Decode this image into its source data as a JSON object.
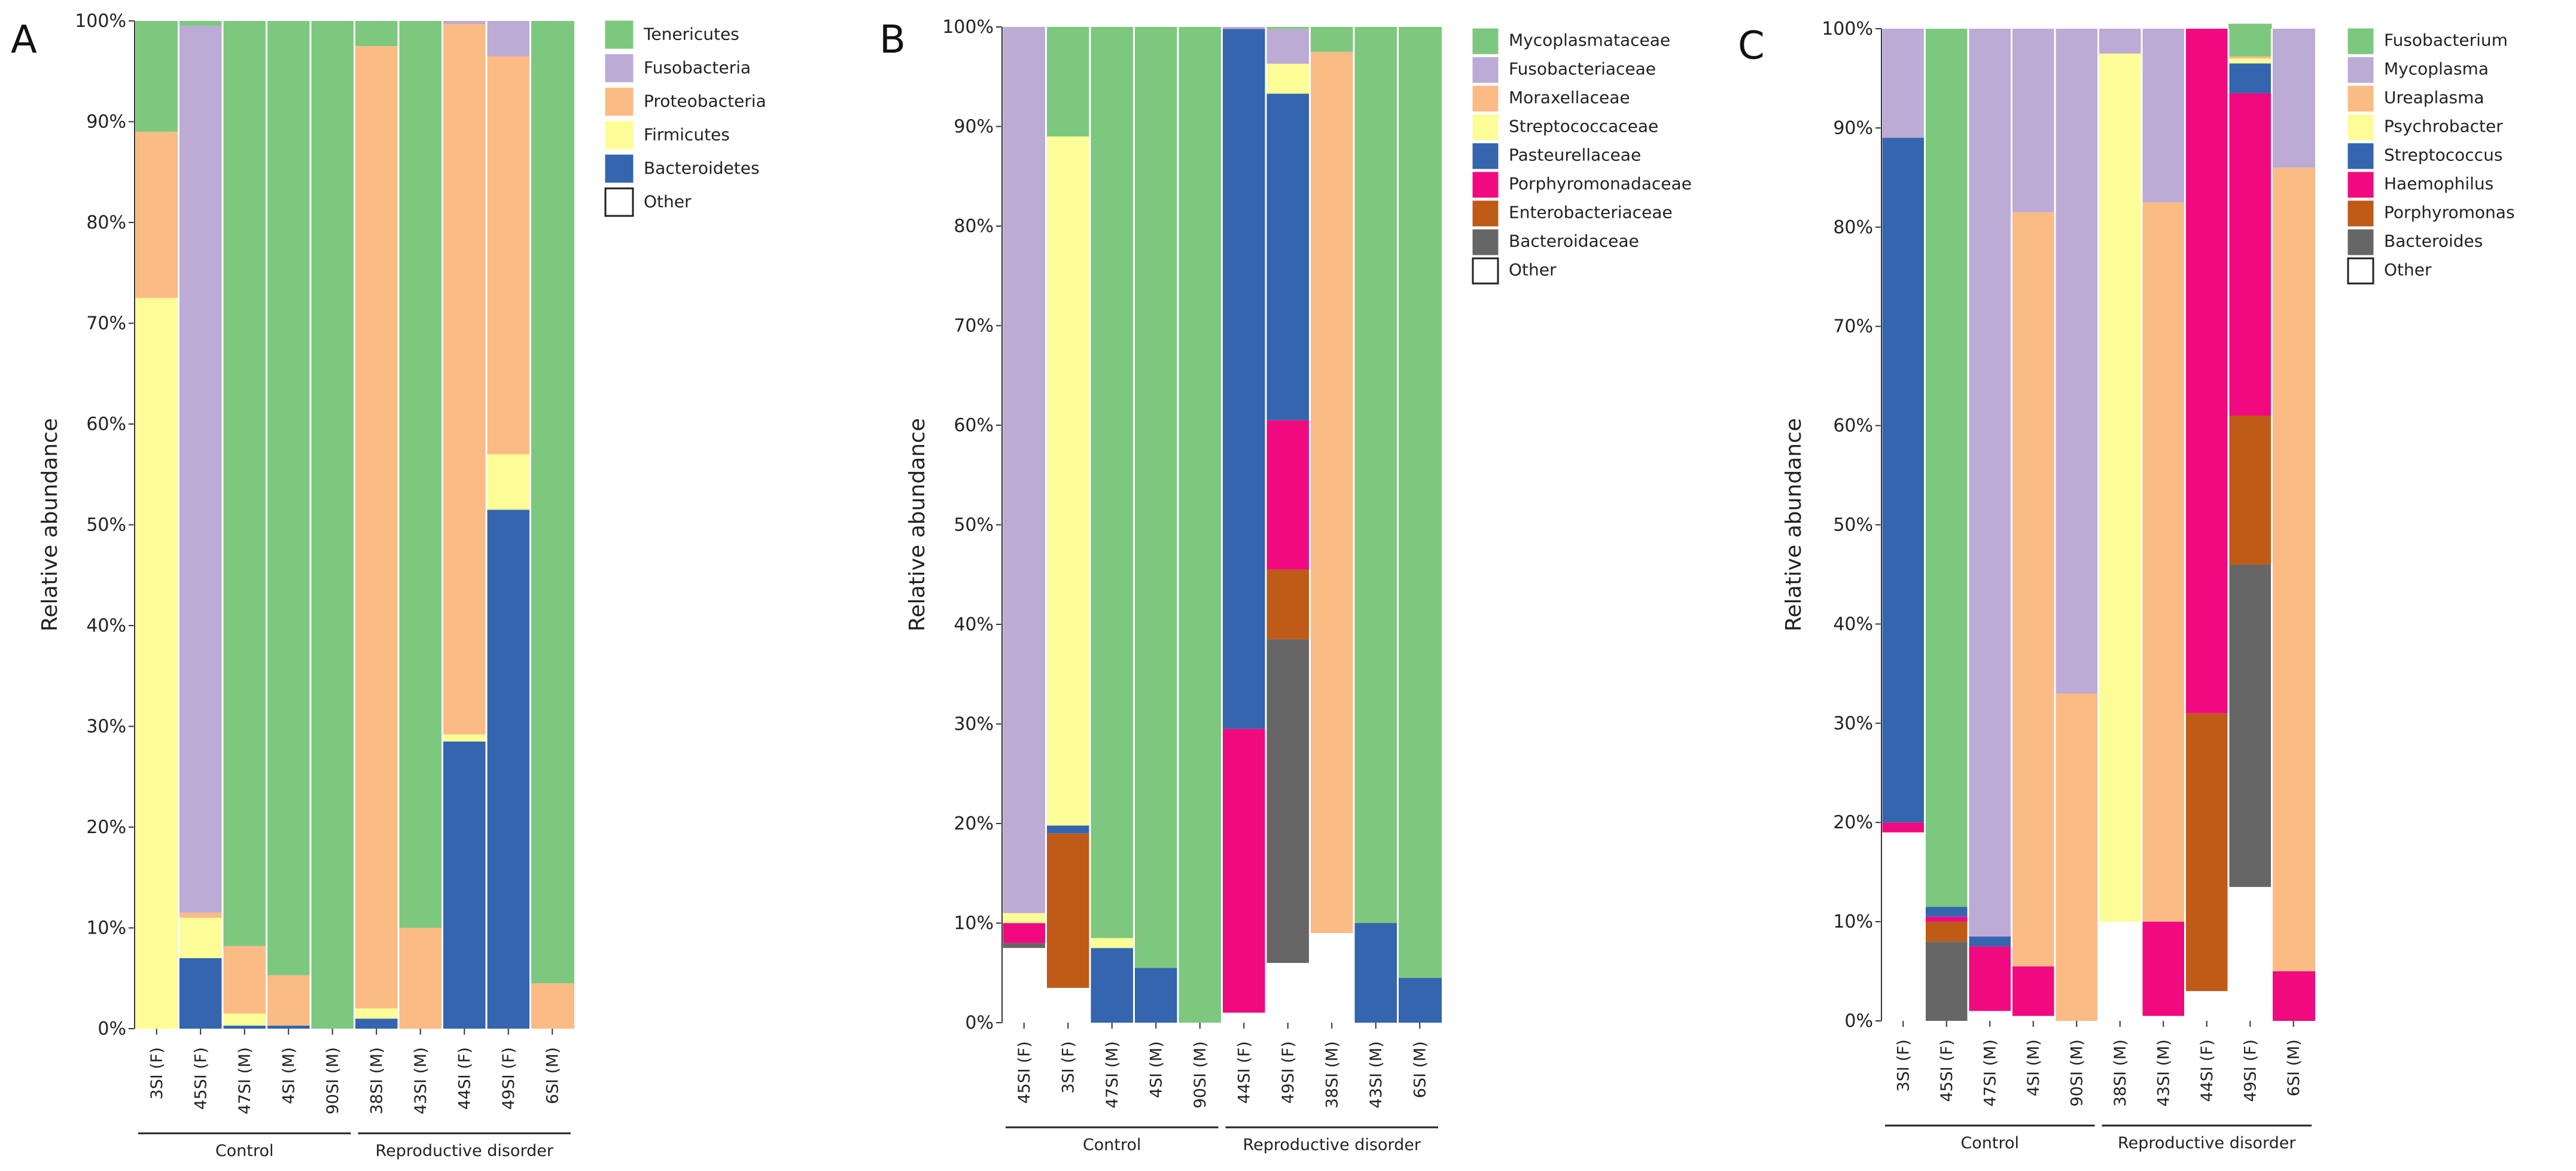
{
  "chart_data": [
    {
      "type": "bar",
      "panel_label": "A",
      "ylabel": "Relative abundance",
      "ylim": [
        0,
        100
      ],
      "yticks": [
        "0%",
        "10%",
        "20%",
        "30%",
        "40%",
        "50%",
        "60%",
        "70%",
        "80%",
        "90%",
        "100%"
      ],
      "categories": [
        "3SI (F)",
        "45SI (F)",
        "47SI (M)",
        "4SI (M)",
        "90SI (M)",
        "38SI (M)",
        "43SI (M)",
        "44SI (F)",
        "49SI (F)",
        "6SI (M)"
      ],
      "groups": [
        {
          "name": "Control",
          "count": 5
        },
        {
          "name": "Reproductive disorder",
          "count": 5
        }
      ],
      "legend": [
        "Tenericutes",
        "Fusobacteria",
        "Proteobacteria",
        "Firmicutes",
        "Bacteroidetes",
        "Other"
      ],
      "stack_order": [
        "Other",
        "Bacteroidetes",
        "Firmicutes",
        "Proteobacteria",
        "Fusobacteria",
        "Tenericutes"
      ],
      "colors": {
        "Tenericutes": "#7dc87f",
        "Fusobacteria": "#bcabd4",
        "Proteobacteria": "#fbbb85",
        "Firmicutes": "#fdfd98",
        "Bacteroidetes": "#3465ae",
        "Other": "#ffffff"
      },
      "series": [
        {
          "name": "Other",
          "values": [
            0,
            0,
            0,
            0,
            0,
            0,
            0,
            0,
            0,
            0
          ]
        },
        {
          "name": "Bacteroidetes",
          "values": [
            0,
            7,
            0.3,
            0.3,
            0,
            1,
            0,
            28.5,
            51.5,
            0
          ]
        },
        {
          "name": "Firmicutes",
          "values": [
            72.5,
            4,
            1.2,
            0,
            0,
            1,
            0,
            0.7,
            5.5,
            0
          ]
        },
        {
          "name": "Proteobacteria",
          "values": [
            16.5,
            0.5,
            6.7,
            5,
            0,
            95.5,
            10,
            70.5,
            39.5,
            4.5
          ]
        },
        {
          "name": "Fusobacteria",
          "values": [
            0,
            88,
            0,
            0,
            0,
            0,
            0,
            0.3,
            3.5,
            0
          ]
        },
        {
          "name": "Tenericutes",
          "values": [
            11,
            0.5,
            91.8,
            94.7,
            100,
            2.5,
            90,
            0,
            0,
            95.5
          ]
        }
      ]
    },
    {
      "type": "bar",
      "panel_label": "B",
      "ylabel": "Relative abundance",
      "ylim": [
        0,
        100
      ],
      "yticks": [
        "0%",
        "10%",
        "20%",
        "30%",
        "40%",
        "50%",
        "60%",
        "70%",
        "80%",
        "90%",
        "100%"
      ],
      "categories": [
        "45SI (F)",
        "3SI (F)",
        "47SI (M)",
        "4SI (M)",
        "90SI (M)",
        "44SI (F)",
        "49SI (F)",
        "38SI (M)",
        "43SI (M)",
        "6SI (M)"
      ],
      "groups": [
        {
          "name": "Control",
          "count": 5
        },
        {
          "name": "Reproductive disorder",
          "count": 5
        }
      ],
      "legend": [
        "Mycoplasmataceae",
        "Fusobacteriaceae",
        "Moraxellaceae",
        "Streptococcaceae",
        "Pasteurellaceae",
        "Porphyromonadaceae",
        "Enterobacteriaceae",
        "Bacteroidaceae",
        "Other"
      ],
      "stack_order": [
        "Other",
        "Bacteroidaceae",
        "Enterobacteriaceae",
        "Porphyromonadaceae",
        "Pasteurellaceae",
        "Streptococcaceae",
        "Moraxellaceae",
        "Fusobacteriaceae",
        "Mycoplasmataceae"
      ],
      "colors": {
        "Mycoplasmataceae": "#7dc87f",
        "Fusobacteriaceae": "#bcabd4",
        "Moraxellaceae": "#fbbb85",
        "Streptococcaceae": "#fdfd98",
        "Pasteurellaceae": "#3465ae",
        "Porphyromonadaceae": "#f0097f",
        "Enterobacteriaceae": "#bf5a17",
        "Bacteroidaceae": "#666666",
        "Other": "#ffffff"
      },
      "series": [
        {
          "name": "Other",
          "values": [
            7.5,
            3.5,
            0,
            0,
            0,
            1,
            6,
            9,
            0,
            0
          ]
        },
        {
          "name": "Bacteroidaceae",
          "values": [
            0.5,
            0,
            0,
            0,
            0,
            0,
            32.5,
            0,
            0,
            0
          ]
        },
        {
          "name": "Enterobacteriaceae",
          "values": [
            0,
            15.5,
            0,
            0,
            0,
            0,
            7,
            0,
            0,
            0
          ]
        },
        {
          "name": "Porphyromonadaceae",
          "values": [
            2,
            0,
            0,
            0,
            0,
            28.5,
            15,
            0,
            0,
            0
          ]
        },
        {
          "name": "Pasteurellaceae",
          "values": [
            0,
            0.8,
            7.5,
            5.5,
            0,
            70.3,
            32.8,
            0,
            10,
            4.5
          ]
        },
        {
          "name": "Streptococcaceae",
          "values": [
            1,
            69.2,
            1,
            0,
            0,
            0,
            3,
            0,
            0,
            0
          ]
        },
        {
          "name": "Moraxellaceae",
          "values": [
            0,
            0,
            0,
            0,
            0,
            0,
            0,
            88.5,
            0,
            0
          ]
        },
        {
          "name": "Fusobacteriaceae",
          "values": [
            89,
            0,
            0,
            0,
            0,
            0.2,
            3.5,
            0,
            0,
            0
          ]
        },
        {
          "name": "Mycoplasmataceae",
          "values": [
            0,
            11,
            91.5,
            94.5,
            100,
            0,
            0.2,
            2.5,
            90,
            95.5
          ]
        }
      ]
    },
    {
      "type": "bar",
      "panel_label": "C",
      "ylabel": "Relative abundance",
      "ylim": [
        0,
        100
      ],
      "yticks": [
        "0%",
        "10%",
        "20%",
        "30%",
        "40%",
        "50%",
        "60%",
        "70%",
        "80%",
        "90%",
        "100%"
      ],
      "categories": [
        "3SI (F)",
        "45SI (F)",
        "47SI (M)",
        "4SI (M)",
        "90SI (M)",
        "38SI (M)",
        "43SI (M)",
        "44SI (F)",
        "49SI (F)",
        "6SI (M)"
      ],
      "groups": [
        {
          "name": "Control",
          "count": 5
        },
        {
          "name": "Reproductive disorder",
          "count": 5
        }
      ],
      "legend": [
        "Fusobacterium",
        "Mycoplasma",
        "Ureaplasma",
        "Psychrobacter",
        "Streptococcus",
        "Haemophilus",
        "Porphyromonas",
        "Bacteroides",
        "Other"
      ],
      "stack_order": [
        "Other",
        "Bacteroides",
        "Porphyromonas",
        "Haemophilus",
        "Streptococcus",
        "Psychrobacter",
        "Ureaplasma",
        "Mycoplasma",
        "Fusobacterium"
      ],
      "colors": {
        "Fusobacterium": "#7dc87f",
        "Mycoplasma": "#bcabd4",
        "Ureaplasma": "#fbbb85",
        "Psychrobacter": "#fdfd98",
        "Streptococcus": "#3465ae",
        "Haemophilus": "#f0097f",
        "Porphyromonas": "#bf5a17",
        "Bacteroides": "#666666",
        "Other": "#ffffff"
      },
      "series": [
        {
          "name": "Other",
          "values": [
            19,
            0,
            1,
            0.5,
            0,
            10,
            0.5,
            3,
            13.5,
            0
          ]
        },
        {
          "name": "Bacteroides",
          "values": [
            0,
            8,
            0,
            0,
            0,
            0,
            0,
            0,
            32.5,
            0
          ]
        },
        {
          "name": "Porphyromonas",
          "values": [
            0,
            2,
            0,
            0,
            0,
            0,
            0,
            28,
            15,
            0
          ]
        },
        {
          "name": "Haemophilus",
          "values": [
            1,
            0.5,
            6.5,
            5,
            0,
            0,
            9.5,
            69,
            32.5,
            5
          ]
        },
        {
          "name": "Streptococcus",
          "values": [
            69,
            1,
            1,
            0,
            0,
            0,
            0,
            0,
            3,
            0
          ]
        },
        {
          "name": "Psychrobacter",
          "values": [
            0,
            0,
            0,
            0,
            0,
            87.5,
            0,
            0,
            0.5,
            0
          ]
        },
        {
          "name": "Ureaplasma",
          "values": [
            0,
            0,
            0,
            76,
            33,
            0,
            72.5,
            0,
            0.2,
            81
          ]
        },
        {
          "name": "Mycoplasma",
          "values": [
            11,
            0,
            91.5,
            18.5,
            67,
            2.5,
            17.5,
            0,
            0,
            14
          ]
        },
        {
          "name": "Fusobacterium",
          "values": [
            0,
            88.5,
            0,
            0,
            0,
            0,
            0,
            0,
            3.3,
            0
          ]
        }
      ]
    }
  ]
}
